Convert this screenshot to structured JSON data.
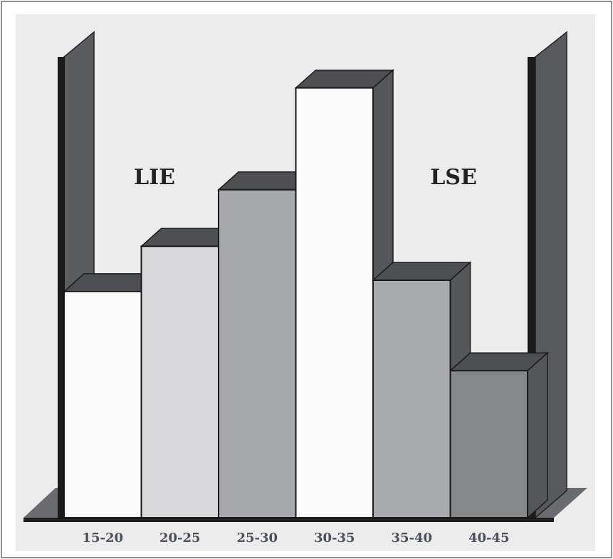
{
  "chart_data": {
    "type": "bar",
    "style": "3d-histogram",
    "categories": [
      "15-20",
      "20-25",
      "25-30",
      "30-35",
      "35-40",
      "40-45"
    ],
    "values": [
      10,
      12,
      14.5,
      19,
      10.5,
      6.5
    ],
    "ylim": [
      0,
      21
    ],
    "bar_colors": [
      "#fbfbfb",
      "#d9d9db",
      "#a7a8ab",
      "#fbfbfb",
      "#a9aaad",
      "#868789"
    ],
    "limits": {
      "lower": {
        "label": "LIE",
        "position": "left"
      },
      "upper": {
        "label": "LSE",
        "position": "right"
      }
    },
    "title": "",
    "xlabel": "",
    "ylabel": "",
    "grid": false,
    "legend": "none"
  }
}
